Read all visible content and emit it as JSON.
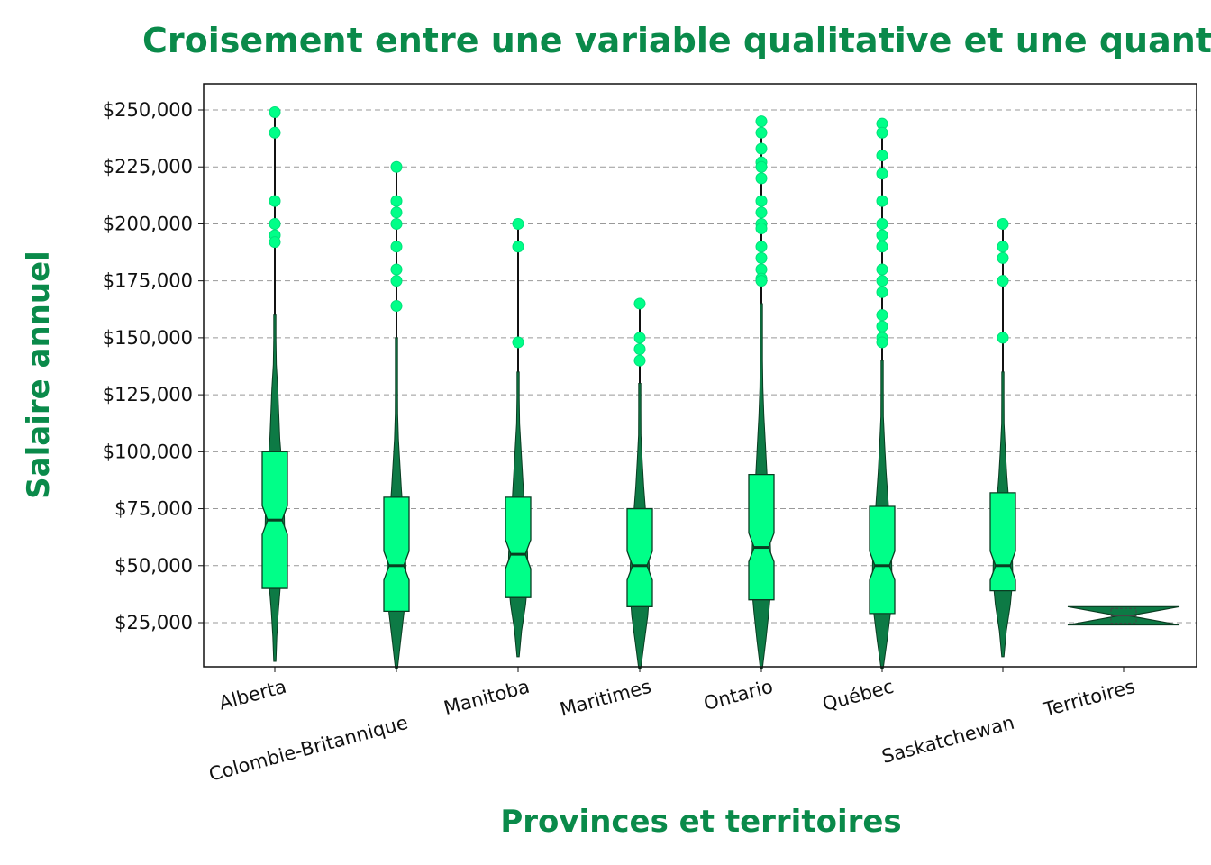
{
  "chart_data": {
    "type": "boxplot",
    "title": "Croisement entre une variable qualitative et une quantitative",
    "xlabel": "Provinces et territoires",
    "ylabel": "Salaire annuel",
    "ylim": [
      5000,
      262000
    ],
    "yticks": [
      25000,
      50000,
      75000,
      100000,
      125000,
      150000,
      175000,
      200000,
      225000,
      250000
    ],
    "ytick_labels": [
      "$25,000",
      "$50,000",
      "$75,000",
      "$100,000",
      "$125,000",
      "$150,000",
      "$175,000",
      "$200,000",
      "$225,000",
      "$250,000"
    ],
    "grid": true,
    "colors": {
      "box": "#00ff88",
      "violin": "#0d7a45",
      "accent": "#0a8a4a",
      "outlier": "#00ff88"
    },
    "categories": [
      "Alberta",
      "Colombie-Britannique",
      "Manitoba",
      "Maritimes",
      "Ontario",
      "Québec",
      "Saskatchewan",
      "Territoires"
    ],
    "groups": [
      {
        "name": "Alberta",
        "min": 8000,
        "q1": 40000,
        "median": 70000,
        "q3": 100000,
        "whisker_high": 192000,
        "outliers": [
          249000,
          240000,
          210000,
          200000,
          195000,
          192000
        ],
        "vmax": 160000,
        "widths": [
          0.02,
          0.2,
          0.35,
          0.55,
          0.75,
          1.0,
          0.95,
          0.8,
          0.7,
          0.5,
          0.4,
          0.3,
          0.15,
          0.08,
          0.03
        ]
      },
      {
        "name": "Colombie-Britannique",
        "min": 5000,
        "q1": 30000,
        "median": 50000,
        "q3": 80000,
        "whisker_high": 164000,
        "outliers": [
          225000,
          210000,
          205000,
          200000,
          190000,
          180000,
          175000,
          164000
        ],
        "vmax": 150000,
        "widths": [
          0.02,
          0.4,
          0.7,
          1.0,
          0.95,
          0.85,
          0.7,
          0.5,
          0.35,
          0.2,
          0.12,
          0.08,
          0.04,
          0.02
        ]
      },
      {
        "name": "Manitoba",
        "min": 10000,
        "q1": 36000,
        "median": 55000,
        "q3": 80000,
        "whisker_high": 148000,
        "outliers": [
          200000,
          190000,
          148000
        ],
        "vmax": 135000,
        "widths": [
          0.02,
          0.35,
          0.75,
          1.0,
          0.95,
          0.8,
          0.6,
          0.45,
          0.3,
          0.15,
          0.08,
          0.03
        ]
      },
      {
        "name": "Maritimes",
        "min": 5000,
        "q1": 32000,
        "median": 50000,
        "q3": 75000,
        "whisker_high": 140000,
        "outliers": [
          165000,
          150000,
          145000,
          140000
        ],
        "vmax": 130000,
        "widths": [
          0.02,
          0.45,
          0.8,
          1.0,
          0.95,
          0.8,
          0.6,
          0.4,
          0.25,
          0.12,
          0.05,
          0.02
        ]
      },
      {
        "name": "Ontario",
        "min": 5000,
        "q1": 35000,
        "median": 58000,
        "q3": 90000,
        "whisker_high": 175000,
        "outliers": [
          245000,
          240000,
          233000,
          227000,
          225000,
          220000,
          210000,
          205000,
          200000,
          198000,
          190000,
          185000,
          180000,
          176000,
          175000
        ],
        "vmax": 165000,
        "widths": [
          0.02,
          0.45,
          0.75,
          1.0,
          0.95,
          0.85,
          0.7,
          0.55,
          0.4,
          0.25,
          0.15,
          0.08,
          0.04,
          0.02
        ]
      },
      {
        "name": "Québec",
        "min": 5000,
        "q1": 29000,
        "median": 50000,
        "q3": 76000,
        "whisker_high": 148000,
        "outliers": [
          244000,
          240000,
          230000,
          222000,
          210000,
          200000,
          195000,
          190000,
          180000,
          175000,
          170000,
          160000,
          155000,
          150000,
          148000
        ],
        "vmax": 140000,
        "widths": [
          0.02,
          0.5,
          0.85,
          1.0,
          0.95,
          0.8,
          0.6,
          0.4,
          0.25,
          0.12,
          0.05,
          0.02
        ]
      },
      {
        "name": "Saskatchewan",
        "min": 10000,
        "q1": 39000,
        "median": 50000,
        "q3": 82000,
        "whisker_high": 150000,
        "outliers": [
          200000,
          190000,
          185000,
          175000,
          150000
        ],
        "vmax": 135000,
        "widths": [
          0.02,
          0.35,
          0.75,
          1.0,
          0.95,
          0.8,
          0.6,
          0.4,
          0.25,
          0.12,
          0.05,
          0.02
        ]
      },
      {
        "name": "Territoires",
        "min": 24000,
        "q1": 24000,
        "median": 28000,
        "q3": 32000,
        "whisker_high": 32000,
        "outliers": [],
        "vmax": 32000,
        "widths": [
          1.0,
          0.8,
          0.4,
          0.8,
          1.0
        ]
      }
    ]
  }
}
